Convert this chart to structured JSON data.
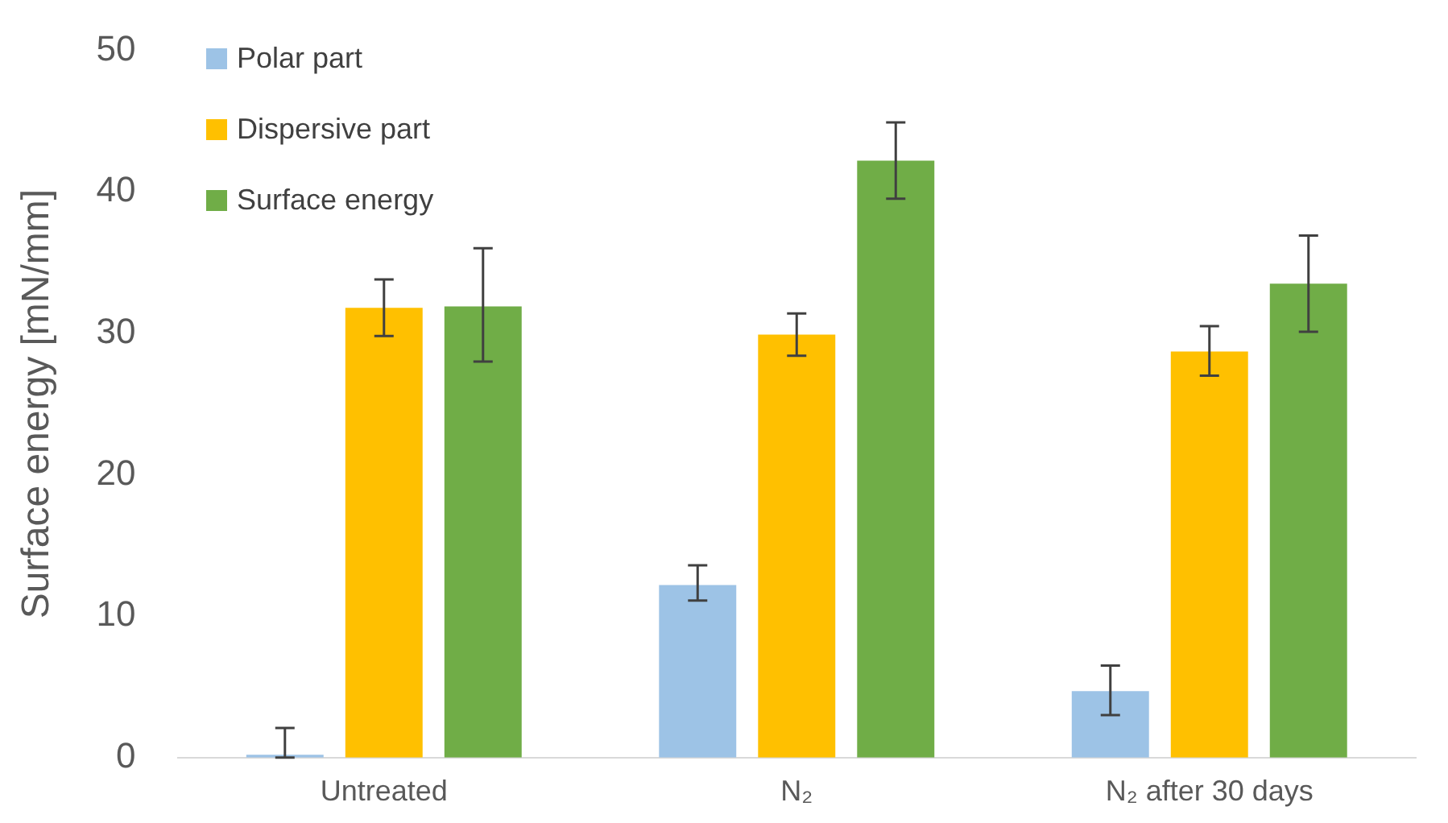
{
  "chart_data": {
    "type": "bar",
    "ylabel": "Surface energy [mN/mm]",
    "categories": [
      "Untreated",
      "N₂",
      "N₂ after 30 days"
    ],
    "series": [
      {
        "name": "Polar part",
        "color": "#9dc3e6",
        "values": [
          0.2,
          12.2,
          4.7
        ],
        "errors": [
          [
            0,
            2.1
          ],
          [
            11.1,
            13.6
          ],
          [
            3.0,
            6.5
          ]
        ]
      },
      {
        "name": "Dispersive part",
        "color": "#ffc000",
        "values": [
          31.8,
          29.9,
          28.7
        ],
        "errors": [
          [
            29.8,
            33.8
          ],
          [
            28.4,
            31.4
          ],
          [
            27.0,
            30.5
          ]
        ]
      },
      {
        "name": "Surface energy",
        "color": "#70ad47",
        "values": [
          31.9,
          42.2,
          33.5
        ],
        "errors": [
          [
            28.0,
            36.0
          ],
          [
            39.5,
            44.9
          ],
          [
            30.1,
            36.9
          ]
        ]
      }
    ],
    "ylim": [
      0,
      50
    ],
    "yticks": [
      0,
      10,
      20,
      30,
      40,
      50
    ],
    "grid": false,
    "legend": "top left"
  }
}
